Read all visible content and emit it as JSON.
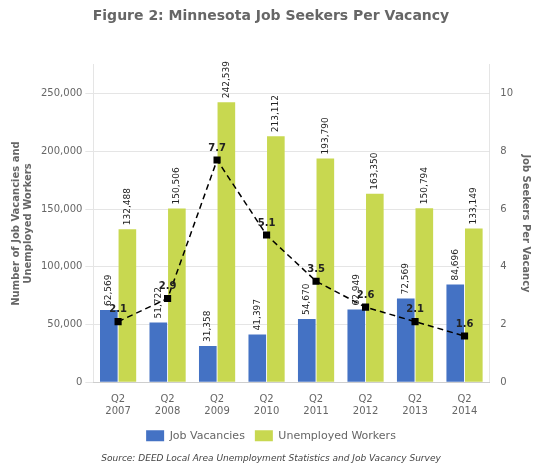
{
  "chart_data": {
    "type": "bar",
    "title": "Figure 2: Minnesota Job Seekers Per Vacancy",
    "categories": [
      "Q2\n2007",
      "Q2\n2008",
      "Q2\n2009",
      "Q2\n2010",
      "Q2\n2011",
      "Q2\n2012",
      "Q2\n2013",
      "Q2\n2014"
    ],
    "series": [
      {
        "name": "Job Vacancies",
        "color": "#4472c4",
        "values": [
          62569,
          51722,
          31358,
          41397,
          54670,
          62949,
          72569,
          84696
        ],
        "value_labels": [
          "62,569",
          "51,722",
          "31,358",
          "41,397",
          "54,670",
          "62,949",
          "72,569",
          "84,696"
        ]
      },
      {
        "name": "Unemployed Workers",
        "color": "#c8d850",
        "values": [
          132488,
          150506,
          242539,
          213112,
          193790,
          163350,
          150794,
          133149
        ],
        "value_labels": [
          "132,488",
          "150,506",
          "242,539",
          "213,112",
          "193,790",
          "163,350",
          "150,794",
          "133,149"
        ]
      },
      {
        "type": "line",
        "axis": "y2",
        "color": "#000000",
        "line_style": "dashed",
        "marker": "square",
        "values": [
          2.1,
          2.9,
          7.7,
          5.1,
          3.5,
          2.6,
          2.1,
          1.6
        ]
      }
    ],
    "ylabel": "Number of Job Vacancies and\nUnemployed Workers",
    "y2label": "Job Seekers Per Vacancy",
    "ylim": [
      0,
      275000
    ],
    "yticks": [
      0,
      {
        "value": 50000,
        "label": "50,000"
      },
      {
        "value": 100000,
        "label": "100,000"
      },
      {
        "value": 150000,
        "label": "150,000"
      },
      {
        "value": 200000,
        "label": "200,000"
      },
      {
        "value": 250000,
        "label": "250,000"
      }
    ],
    "y2lim": [
      0,
      11
    ],
    "y2ticks": [
      0,
      2,
      4,
      6,
      8,
      10
    ],
    "grid": true,
    "legend": "bottom",
    "data_labels": true,
    "annotations": [
      "Source: DEED Local Area Unemployment Statistics and Job Vacancy Survey"
    ]
  }
}
